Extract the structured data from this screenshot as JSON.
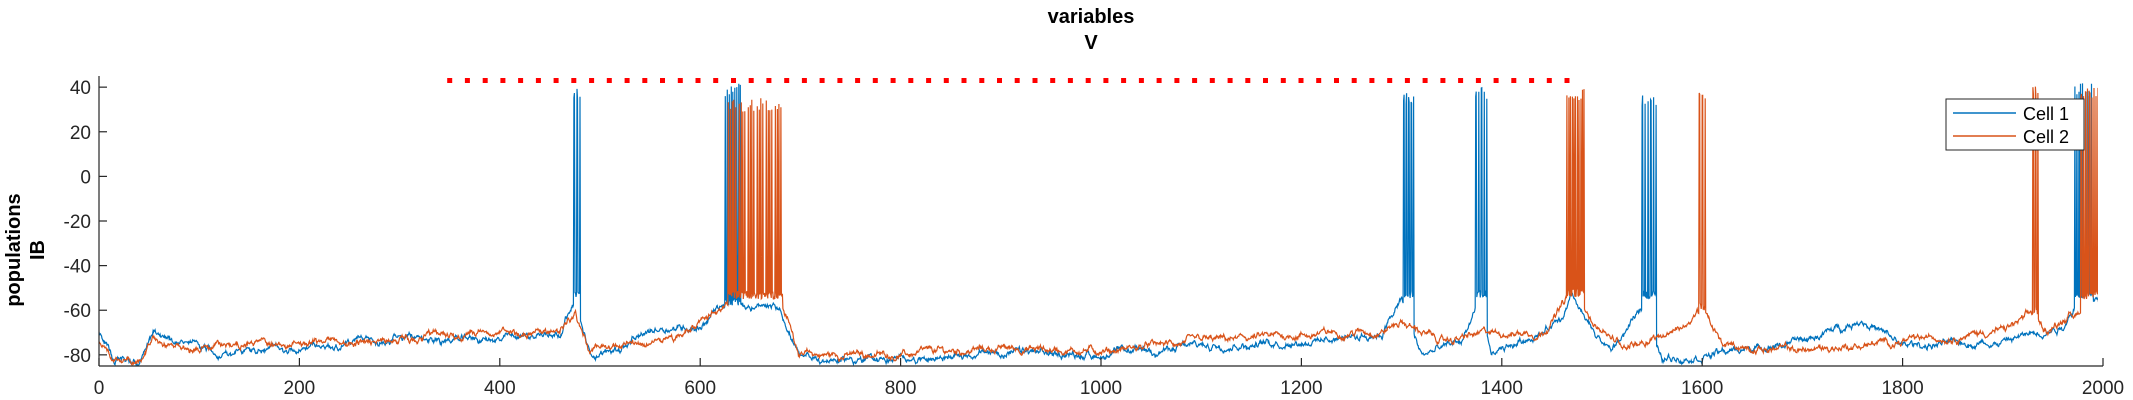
{
  "chart_data": {
    "type": "line",
    "title_line1": "variables",
    "title_line2": "V",
    "ylabel_line1": "populations",
    "ylabel_line2": "IB",
    "xlabel": "",
    "xlim": [
      0,
      2000
    ],
    "ylim": [
      -85,
      45
    ],
    "x_ticks": [
      0,
      200,
      400,
      600,
      800,
      1000,
      1200,
      1400,
      1600,
      1800,
      2000
    ],
    "y_ticks": [
      -80,
      -60,
      -40,
      -20,
      0,
      20,
      40
    ],
    "grid": false,
    "legend_position": "top-right",
    "colors": {
      "cell1": "#0072BD",
      "cell2": "#D95319",
      "marker": "#FF0000"
    },
    "marker_line": {
      "y": 43,
      "x_start": 350,
      "x_end": 1480,
      "style": "dotted"
    },
    "series": [
      {
        "name": "Cell 1",
        "color": "#0072BD",
        "baseline": [
          [
            0,
            -70
          ],
          [
            15,
            -82
          ],
          [
            40,
            -84
          ],
          [
            55,
            -70
          ],
          [
            80,
            -74
          ],
          [
            120,
            -79
          ],
          [
            200,
            -77
          ],
          [
            300,
            -73
          ],
          [
            400,
            -73
          ],
          [
            460,
            -70
          ],
          [
            475,
            -55
          ],
          [
            490,
            -80
          ],
          [
            520,
            -77
          ],
          [
            560,
            -68
          ],
          [
            600,
            -67
          ],
          [
            620,
            -58
          ],
          [
            680,
            -60
          ],
          [
            700,
            -82
          ],
          [
            800,
            -82
          ],
          [
            900,
            -79
          ],
          [
            1000,
            -80
          ],
          [
            1100,
            -76
          ],
          [
            1200,
            -74
          ],
          [
            1280,
            -70
          ],
          [
            1300,
            -55
          ],
          [
            1320,
            -80
          ],
          [
            1360,
            -74
          ],
          [
            1375,
            -58
          ],
          [
            1390,
            -80
          ],
          [
            1460,
            -65
          ],
          [
            1470,
            -55
          ],
          [
            1490,
            -70
          ],
          [
            1510,
            -78
          ],
          [
            1540,
            -60
          ],
          [
            1560,
            -82
          ],
          [
            1600,
            -80
          ],
          [
            1700,
            -74
          ],
          [
            1760,
            -64
          ],
          [
            1800,
            -76
          ],
          [
            1900,
            -74
          ],
          [
            1960,
            -67
          ],
          [
            1975,
            -55
          ],
          [
            2000,
            -57
          ]
        ],
        "bursts": [
          {
            "x_start": 474,
            "x_end": 480,
            "count": 2,
            "peak": 40,
            "trough": -55
          },
          {
            "x_start": 625,
            "x_end": 640,
            "count": 8,
            "peak": 42,
            "trough": -58
          },
          {
            "x_start": 1302,
            "x_end": 1312,
            "count": 4,
            "peak": 38,
            "trough": -55
          },
          {
            "x_start": 1374,
            "x_end": 1385,
            "count": 4,
            "peak": 40,
            "trough": -55
          },
          {
            "x_start": 1540,
            "x_end": 1554,
            "count": 5,
            "peak": 37,
            "trough": -55
          },
          {
            "x_start": 1972,
            "x_end": 1990,
            "count": 10,
            "peak": 42,
            "trough": -55
          }
        ]
      },
      {
        "name": "Cell 2",
        "color": "#D95319",
        "baseline": [
          [
            0,
            -75
          ],
          [
            15,
            -82
          ],
          [
            40,
            -84
          ],
          [
            55,
            -72
          ],
          [
            80,
            -76
          ],
          [
            120,
            -77
          ],
          [
            200,
            -74
          ],
          [
            300,
            -73
          ],
          [
            400,
            -71
          ],
          [
            460,
            -69
          ],
          [
            475,
            -60
          ],
          [
            490,
            -78
          ],
          [
            530,
            -76
          ],
          [
            580,
            -70
          ],
          [
            610,
            -63
          ],
          [
            625,
            -56
          ],
          [
            680,
            -56
          ],
          [
            700,
            -80
          ],
          [
            800,
            -80
          ],
          [
            900,
            -77
          ],
          [
            1000,
            -78
          ],
          [
            1100,
            -74
          ],
          [
            1200,
            -71
          ],
          [
            1280,
            -69
          ],
          [
            1300,
            -65
          ],
          [
            1340,
            -74
          ],
          [
            1390,
            -70
          ],
          [
            1440,
            -70
          ],
          [
            1465,
            -55
          ],
          [
            1485,
            -62
          ],
          [
            1520,
            -76
          ],
          [
            1580,
            -68
          ],
          [
            1600,
            -60
          ],
          [
            1620,
            -76
          ],
          [
            1700,
            -78
          ],
          [
            1800,
            -74
          ],
          [
            1900,
            -69
          ],
          [
            1930,
            -62
          ],
          [
            1945,
            -70
          ],
          [
            1960,
            -64
          ],
          [
            2000,
            -55
          ]
        ],
        "bursts": [
          {
            "x_start": 628,
            "x_end": 682,
            "count": 30,
            "peak": 35,
            "trough": -55
          },
          {
            "x_start": 1465,
            "x_end": 1482,
            "count": 10,
            "peak": 40,
            "trough": -54
          },
          {
            "x_start": 1597,
            "x_end": 1603,
            "count": 2,
            "peak": 40,
            "trough": -60
          },
          {
            "x_start": 1930,
            "x_end": 1935,
            "count": 2,
            "peak": 42,
            "trough": -62
          },
          {
            "x_start": 1978,
            "x_end": 1995,
            "count": 8,
            "peak": 40,
            "trough": -55
          }
        ]
      }
    ]
  }
}
